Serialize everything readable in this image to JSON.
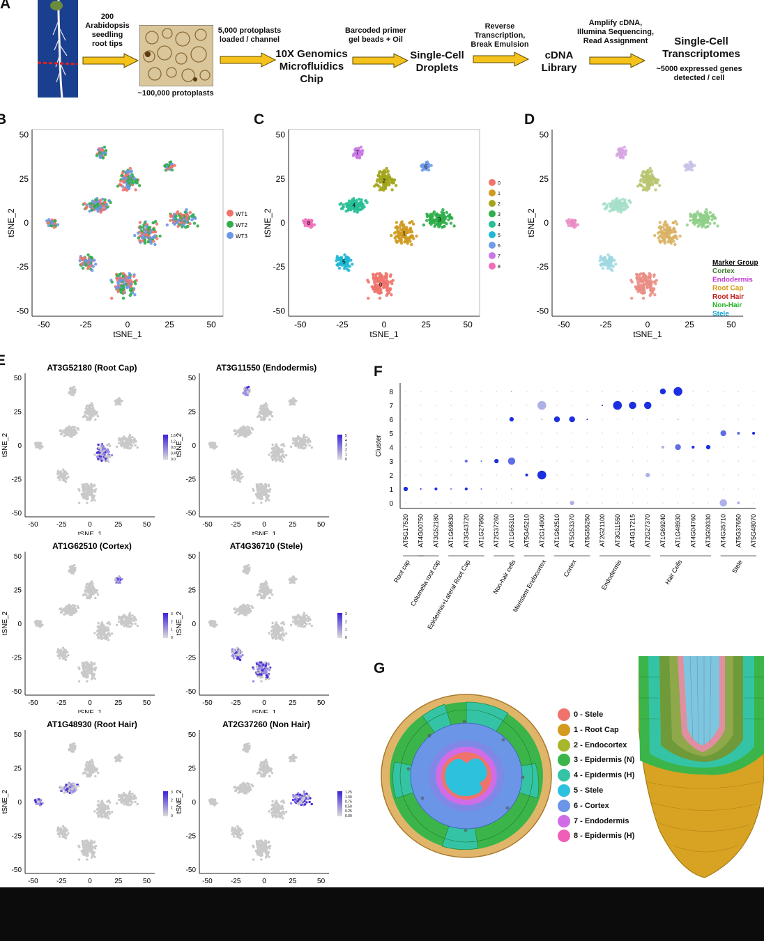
{
  "panel_letters": {
    "a": "A",
    "b": "B",
    "c": "C",
    "d": "D",
    "e": "E",
    "f": "F",
    "g": "G"
  },
  "workflow": {
    "seedlings": "200\nArabidopsis\nseedling\nroot tips",
    "protoplasts_count": "~100,000 protoplasts",
    "loaded": "5,000 protoplasts\nloaded / channel",
    "chip": "10X Genomics\nMicrofluidics\nChip",
    "beads": "Barcoded primer\ngel beads + Oil",
    "droplets": "Single-Cell\nDroplets",
    "rt": "Reverse\nTranscription,\nBreak Emulsion",
    "library": "cDNA\nLibrary",
    "amplify": "Amplify cDNA,\nIllumina Sequencing,\nRead Assignment",
    "transcriptomes": "Single-Cell\nTranscriptomes",
    "genes": "~5000 expressed genes\ndetected / cell"
  },
  "tsne_axes": {
    "x_label": "tSNE_1",
    "y_label": "tSNE_2",
    "ticks": [
      "-50",
      "-25",
      "0",
      "25",
      "50"
    ]
  },
  "panel_b": {
    "legend": [
      {
        "label": "WT1",
        "color": "#f0736b"
      },
      {
        "label": "WT2",
        "color": "#2fae4a"
      },
      {
        "label": "WT3",
        "color": "#6b97e8"
      }
    ]
  },
  "panel_c": {
    "legend": [
      {
        "label": "0",
        "color": "#f0736b"
      },
      {
        "label": "1",
        "color": "#cf9a1f"
      },
      {
        "label": "2",
        "color": "#a3a51c"
      },
      {
        "label": "3",
        "color": "#2fae4a"
      },
      {
        "label": "4",
        "color": "#27bf96"
      },
      {
        "label": "5",
        "color": "#1fb8d4"
      },
      {
        "label": "6",
        "color": "#6e9de8"
      },
      {
        "label": "7",
        "color": "#c978e6"
      },
      {
        "label": "8",
        "color": "#f26bb8"
      }
    ],
    "cluster_labels": [
      "0",
      "1",
      "2",
      "3",
      "4",
      "5",
      "6",
      "7",
      "8"
    ]
  },
  "panel_d": {
    "title": "Marker Group",
    "legend": [
      {
        "label": "Cortex",
        "color": "#3a7d2a"
      },
      {
        "label": "Endodermis",
        "color": "#c13bd1"
      },
      {
        "label": "Root Cap",
        "color": "#d89a10"
      },
      {
        "label": "Root Hair",
        "color": "#c01818"
      },
      {
        "label": "Non-Hair",
        "color": "#22b422"
      },
      {
        "label": "Stele",
        "color": "#1aa8d8"
      }
    ]
  },
  "panel_e": [
    {
      "title": "AT3G52180 (Root Cap)",
      "scale": [
        "1.6",
        "1.2",
        "0.8",
        "0.4",
        "0.0"
      ]
    },
    {
      "title": "AT3G11550 (Endodermis)",
      "scale": [
        "5",
        "4",
        "3",
        "2",
        "1",
        "0"
      ]
    },
    {
      "title": "AT1G62510 (Cortex)",
      "scale": [
        "3",
        "2",
        "1",
        "0"
      ]
    },
    {
      "title": "AT4G36710 (Stele)",
      "scale": [
        "3",
        "2",
        "1",
        "0"
      ]
    },
    {
      "title": "AT1G48930 (Root Hair)",
      "scale": [
        "3",
        "2",
        "1",
        "0"
      ]
    },
    {
      "title": "AT2G37260 (Non Hair)",
      "scale": [
        "1.25",
        "1.00",
        "0.75",
        "0.50",
        "0.25",
        "0.00"
      ]
    }
  ],
  "chart_data": {
    "type": "scatter",
    "title": "",
    "xlabel": "",
    "ylabel": "Cluster",
    "y_ticks": [
      "0",
      "1",
      "2",
      "3",
      "4",
      "5",
      "6",
      "7",
      "8"
    ],
    "genes": [
      "AT5G17520",
      "AT4G00750",
      "AT3G52180",
      "AT1G69830",
      "AT3G43720",
      "AT1G27950",
      "AT2G37260",
      "AT1G65310",
      "AT5G45210",
      "AT2G14900",
      "AT1G62510",
      "AT5G53370",
      "AT5G55250",
      "AT2G21100",
      "AT3G11550",
      "AT4G17215",
      "AT2G27370",
      "AT1G69240",
      "AT1G48930",
      "AT4G04760",
      "AT3G09330",
      "AT4G35710",
      "AT5G37650",
      "AT5G48070"
    ],
    "groups": [
      "Root cap",
      "Columella root cap",
      "Epidermis+Lateral Root Cap",
      "Non-hair cells",
      "Meristem Endocortex",
      "Cortex",
      "Endodermis",
      "Hair Cells",
      "Stele"
    ],
    "dots": [
      [
        0,
        1,
        3,
        1.0
      ],
      [
        1,
        1,
        1,
        1.0
      ],
      [
        2,
        1,
        2,
        1.0
      ],
      [
        3,
        1,
        1,
        0.7
      ],
      [
        4,
        1,
        2,
        1.0
      ],
      [
        5,
        1,
        1,
        0.6
      ],
      [
        4,
        3,
        2,
        0.6
      ],
      [
        5,
        3,
        1,
        0.6
      ],
      [
        6,
        3,
        3,
        1.0
      ],
      [
        7,
        3,
        5,
        0.6
      ],
      [
        7,
        6,
        3,
        1.0
      ],
      [
        10,
        6,
        4,
        1.0
      ],
      [
        11,
        6,
        4,
        1.0
      ],
      [
        12,
        6,
        1,
        0.9
      ],
      [
        8,
        2,
        2,
        1.0
      ],
      [
        9,
        2,
        6,
        1.0
      ],
      [
        16,
        2,
        3,
        0.4
      ],
      [
        9,
        7,
        6,
        0.45
      ],
      [
        13,
        7,
        1,
        1.0
      ],
      [
        14,
        7,
        6,
        1.0
      ],
      [
        15,
        7,
        5,
        1.0
      ],
      [
        16,
        7,
        5,
        1.0
      ],
      [
        17,
        8,
        4,
        1.0
      ],
      [
        18,
        8,
        6,
        0.9
      ],
      [
        17,
        4,
        2,
        0.4
      ],
      [
        18,
        4,
        4,
        0.8
      ],
      [
        19,
        4,
        2,
        1.0
      ],
      [
        20,
        4,
        3,
        1.0
      ],
      [
        21,
        5,
        4,
        0.8
      ],
      [
        22,
        5,
        2,
        0.6
      ],
      [
        23,
        5,
        2,
        0.9
      ],
      [
        21,
        0,
        5,
        0.5
      ],
      [
        22,
        0,
        2,
        0.5
      ],
      [
        11,
        0,
        3,
        0.4
      ],
      [
        7,
        8,
        1,
        0.3
      ],
      [
        7,
        1,
        1,
        0.3
      ],
      [
        7,
        0,
        1,
        0.3
      ],
      [
        9,
        6,
        1,
        0.3
      ],
      [
        18,
        6,
        1,
        0.3
      ]
    ]
  },
  "panel_g": {
    "legend": [
      {
        "label": "0 - Stele",
        "color": "#f0736b"
      },
      {
        "label": "1 - Root Cap",
        "color": "#d39a1e"
      },
      {
        "label": "2 - Endocortex",
        "color": "#a7b62c"
      },
      {
        "label": "3 - Epidermis (N)",
        "color": "#3bb54a"
      },
      {
        "label": "4 - Epidermis (H)",
        "color": "#34c4a5"
      },
      {
        "label": "5 - Stele",
        "color": "#2cc1dd"
      },
      {
        "label": "6 - Cortex",
        "color": "#6b95e6"
      },
      {
        "label": "7 - Endodermis",
        "color": "#d06de6"
      },
      {
        "label": "8 - Epidermis (H)",
        "color": "#ee5fb7"
      }
    ]
  }
}
